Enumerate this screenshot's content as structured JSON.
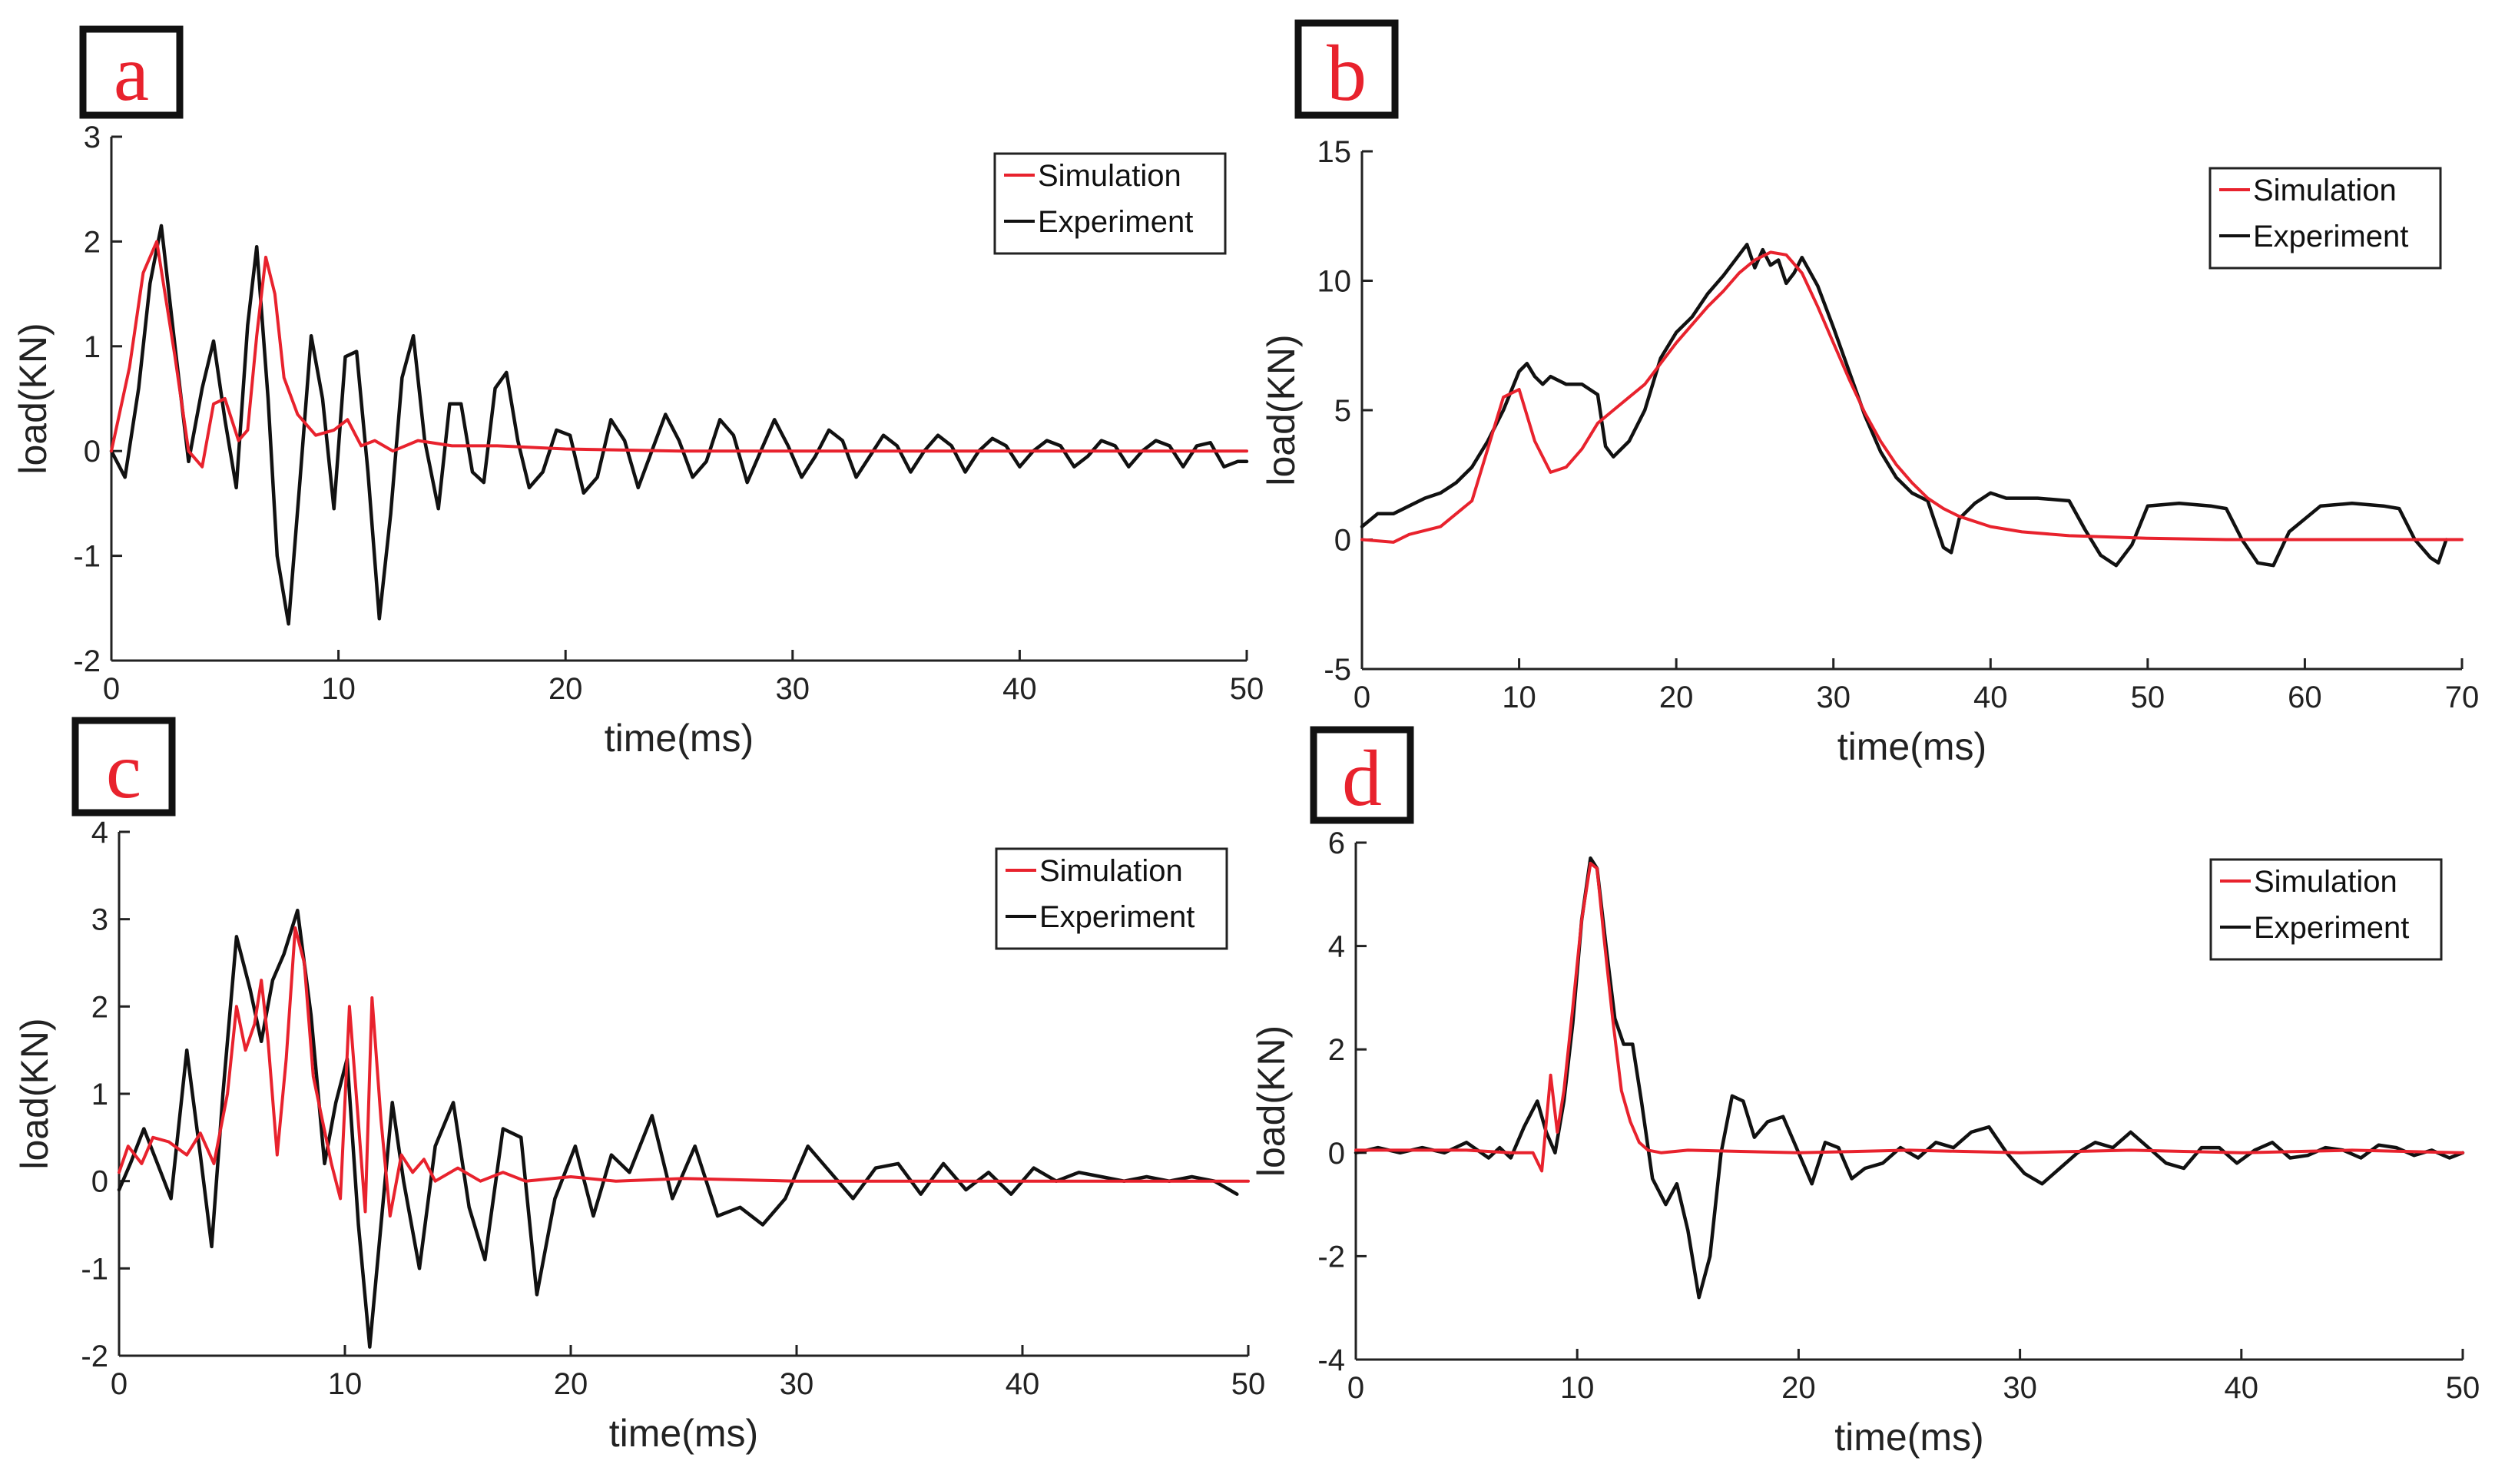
{
  "colors": {
    "simulation": "#e8222d",
    "experiment": "#111111",
    "panel_letter": "#e8222d",
    "axis": "#222222"
  },
  "chart_data": [
    {
      "id": "a",
      "type": "line",
      "panel_label": "a",
      "xlabel": "time(ms)",
      "ylabel": "load(KN)",
      "xlim": [
        0,
        50
      ],
      "ylim": [
        -2,
        3
      ],
      "xticks": [
        0,
        10,
        20,
        30,
        40,
        50
      ],
      "yticks": [
        -2,
        -1,
        0,
        1,
        2,
        3
      ],
      "legend_position": "top-right",
      "series": [
        {
          "name": "Simulation",
          "color": "#e8222d",
          "x": [
            0,
            0.8,
            1.4,
            2.0,
            2.8,
            3.4,
            4.0,
            4.5,
            5.0,
            5.6,
            6.0,
            6.4,
            6.8,
            7.2,
            7.6,
            8.2,
            9.0,
            9.8,
            10.4,
            11.0,
            11.6,
            12.4,
            13.5,
            15,
            17,
            20,
            25,
            30,
            35,
            40,
            45,
            50
          ],
          "y": [
            0,
            0.8,
            1.7,
            2.0,
            0.9,
            0.0,
            -0.15,
            0.45,
            0.5,
            0.1,
            0.2,
            1.1,
            1.85,
            1.5,
            0.7,
            0.35,
            0.15,
            0.2,
            0.3,
            0.05,
            0.1,
            0.0,
            0.1,
            0.05,
            0.05,
            0.02,
            0.0,
            0.0,
            0.0,
            0.0,
            0.0,
            0.0
          ]
        },
        {
          "name": "Experiment",
          "color": "#111111",
          "x": [
            0,
            0.6,
            1.2,
            1.7,
            2.2,
            2.8,
            3.4,
            4.0,
            4.5,
            5.0,
            5.5,
            6.0,
            6.4,
            6.9,
            7.3,
            7.8,
            8.3,
            8.8,
            9.3,
            9.8,
            10.3,
            10.8,
            11.3,
            11.8,
            12.3,
            12.8,
            13.3,
            13.8,
            14.4,
            14.9,
            15.4,
            15.9,
            16.4,
            16.9,
            17.4,
            17.9,
            18.4,
            19.0,
            19.6,
            20.2,
            20.8,
            21.4,
            22.0,
            22.6,
            23.2,
            23.8,
            24.4,
            25.0,
            25.6,
            26.2,
            26.8,
            27.4,
            28.0,
            28.6,
            29.2,
            29.8,
            30.4,
            31.0,
            31.6,
            32.2,
            32.8,
            33.4,
            34.0,
            34.6,
            35.2,
            35.8,
            36.4,
            37.0,
            37.6,
            38.2,
            38.8,
            39.4,
            40.0,
            40.6,
            41.2,
            41.8,
            42.4,
            43.0,
            43.6,
            44.2,
            44.8,
            45.4,
            46.0,
            46.6,
            47.2,
            47.8,
            48.4,
            49.0,
            49.6,
            50
          ],
          "y": [
            0,
            -0.25,
            0.6,
            1.6,
            2.15,
            1.0,
            -0.1,
            0.6,
            1.05,
            0.3,
            -0.35,
            1.2,
            1.95,
            0.5,
            -1.0,
            -1.65,
            -0.3,
            1.1,
            0.5,
            -0.55,
            0.9,
            0.95,
            -0.2,
            -1.6,
            -0.6,
            0.7,
            1.1,
            0.1,
            -0.55,
            0.45,
            0.45,
            -0.2,
            -0.3,
            0.6,
            0.75,
            0.1,
            -0.35,
            -0.2,
            0.2,
            0.15,
            -0.4,
            -0.25,
            0.3,
            0.1,
            -0.35,
            0.0,
            0.35,
            0.1,
            -0.25,
            -0.1,
            0.3,
            0.15,
            -0.3,
            0.0,
            0.3,
            0.05,
            -0.25,
            -0.05,
            0.2,
            0.1,
            -0.25,
            -0.05,
            0.15,
            0.05,
            -0.2,
            0.0,
            0.15,
            0.05,
            -0.2,
            0.0,
            0.12,
            0.05,
            -0.15,
            0.0,
            0.1,
            0.05,
            -0.15,
            -0.05,
            0.1,
            0.05,
            -0.15,
            0.0,
            0.1,
            0.05,
            -0.15,
            0.05,
            0.08,
            -0.15,
            -0.1,
            -0.1
          ]
        }
      ]
    },
    {
      "id": "b",
      "type": "line",
      "panel_label": "b",
      "xlabel": "time(ms)",
      "ylabel": "load(KN)",
      "xlim": [
        0,
        70
      ],
      "ylim": [
        -5,
        15
      ],
      "xticks": [
        0,
        10,
        20,
        30,
        40,
        50,
        60,
        70
      ],
      "yticks": [
        -5,
        0,
        5,
        10,
        15
      ],
      "legend_position": "top-right",
      "series": [
        {
          "name": "Simulation",
          "color": "#e8222d",
          "x": [
            0,
            2,
            3,
            5,
            7,
            8,
            9,
            10,
            11,
            12,
            13,
            14,
            15,
            16,
            17,
            18,
            19,
            20,
            21,
            22,
            23,
            24,
            25,
            26,
            27,
            28,
            29,
            30,
            31,
            32,
            33,
            34,
            35,
            36,
            37,
            38,
            40,
            42,
            45,
            50,
            55,
            60,
            65,
            70
          ],
          "y": [
            0.0,
            -0.1,
            0.2,
            0.5,
            1.5,
            3.5,
            5.5,
            5.8,
            3.8,
            2.6,
            2.8,
            3.5,
            4.5,
            5.0,
            5.5,
            6.0,
            6.8,
            7.6,
            8.3,
            9.0,
            9.6,
            10.3,
            10.8,
            11.1,
            11.0,
            10.3,
            9.0,
            7.6,
            6.2,
            4.9,
            3.8,
            2.9,
            2.2,
            1.6,
            1.2,
            0.9,
            0.5,
            0.3,
            0.15,
            0.05,
            0.0,
            0.0,
            0.0,
            0.0
          ]
        },
        {
          "name": "Experiment",
          "color": "#111111",
          "x": [
            0,
            1,
            2,
            3,
            4,
            5,
            6,
            7,
            8,
            9,
            10,
            10.5,
            11,
            11.5,
            12,
            13,
            14,
            15,
            15.5,
            16,
            17,
            18,
            19,
            20,
            21,
            22,
            23,
            24,
            24.5,
            25,
            25.5,
            26,
            26.5,
            27,
            27.5,
            28,
            29,
            30,
            31,
            32,
            33,
            34,
            35,
            36,
            37,
            37.5,
            38,
            39,
            40,
            41,
            43,
            45,
            46,
            47,
            48,
            49,
            50,
            52,
            54,
            55,
            56,
            57,
            58,
            59,
            61,
            63,
            65,
            66,
            67,
            68,
            68.5,
            69
          ],
          "y": [
            0.5,
            1.0,
            1.0,
            1.3,
            1.6,
            1.8,
            2.2,
            2.8,
            3.8,
            5.0,
            6.5,
            6.8,
            6.3,
            6.0,
            6.3,
            6.0,
            6.0,
            5.6,
            3.6,
            3.2,
            3.8,
            5.0,
            7.0,
            8.0,
            8.6,
            9.5,
            10.2,
            11.0,
            11.4,
            10.5,
            11.2,
            10.6,
            10.8,
            9.9,
            10.3,
            10.9,
            9.8,
            8.2,
            6.5,
            4.8,
            3.4,
            2.4,
            1.8,
            1.5,
            -0.3,
            -0.5,
            0.8,
            1.4,
            1.8,
            1.6,
            1.6,
            1.5,
            0.4,
            -0.6,
            -1.0,
            -0.2,
            1.3,
            1.4,
            1.3,
            1.2,
            0.0,
            -0.9,
            -1.0,
            0.3,
            1.3,
            1.4,
            1.3,
            1.2,
            0.0,
            -0.7,
            -0.9,
            0.0
          ]
        }
      ]
    },
    {
      "id": "c",
      "type": "line",
      "panel_label": "c",
      "xlabel": "time(ms)",
      "ylabel": "load(KN)",
      "xlim": [
        0,
        50
      ],
      "ylim": [
        -2,
        4
      ],
      "xticks": [
        0,
        10,
        20,
        30,
        40,
        50
      ],
      "yticks": [
        -2,
        -1,
        0,
        1,
        2,
        3,
        4
      ],
      "legend_position": "top-right",
      "series": [
        {
          "name": "Simulation",
          "color": "#e8222d",
          "x": [
            0,
            0.4,
            1.0,
            1.5,
            2.2,
            3.0,
            3.6,
            4.2,
            4.8,
            5.2,
            5.6,
            6.0,
            6.3,
            6.6,
            7.0,
            7.4,
            7.8,
            8.2,
            8.6,
            9.0,
            9.4,
            9.8,
            10.2,
            10.5,
            10.9,
            11.2,
            11.6,
            12.0,
            12.5,
            13.0,
            13.5,
            14.0,
            15,
            16,
            17,
            18,
            20,
            22,
            25,
            30,
            35,
            40,
            45,
            50
          ],
          "y": [
            0.1,
            0.4,
            0.2,
            0.5,
            0.45,
            0.3,
            0.55,
            0.2,
            1.0,
            2.0,
            1.5,
            1.8,
            2.3,
            1.6,
            0.3,
            1.4,
            2.9,
            2.5,
            1.2,
            0.7,
            0.2,
            -0.2,
            2.0,
            1.0,
            -0.35,
            2.1,
            0.7,
            -0.4,
            0.3,
            0.1,
            0.25,
            0.0,
            0.15,
            0.0,
            0.1,
            0.0,
            0.05,
            0.0,
            0.03,
            0.0,
            0.0,
            0.0,
            0.0,
            0.0
          ]
        },
        {
          "name": "Experiment",
          "color": "#111111",
          "x": [
            0,
            0.5,
            1.1,
            1.7,
            2.3,
            3.0,
            3.6,
            4.1,
            4.6,
            5.2,
            5.8,
            6.3,
            6.8,
            7.3,
            7.9,
            8.5,
            9.1,
            9.6,
            10.1,
            10.6,
            11.1,
            11.6,
            12.1,
            12.6,
            13.3,
            14.0,
            14.8,
            15.5,
            16.2,
            17.0,
            17.8,
            18.5,
            19.3,
            20.2,
            21.0,
            21.8,
            22.6,
            23.6,
            24.5,
            25.5,
            26.5,
            27.5,
            28.5,
            29.5,
            30.5,
            31.5,
            32.5,
            33.5,
            34.5,
            35.5,
            36.5,
            37.5,
            38.5,
            39.5,
            40.5,
            41.5,
            42.5,
            43.5,
            44.5,
            45.5,
            46.5,
            47.5,
            48.5,
            49.5
          ],
          "y": [
            -0.1,
            0.2,
            0.6,
            0.2,
            -0.2,
            1.5,
            0.3,
            -0.75,
            1.0,
            2.8,
            2.2,
            1.6,
            2.3,
            2.6,
            3.1,
            1.9,
            0.2,
            0.9,
            1.4,
            -0.5,
            -1.9,
            -0.5,
            0.9,
            0.0,
            -1.0,
            0.4,
            0.9,
            -0.3,
            -0.9,
            0.6,
            0.5,
            -1.3,
            -0.2,
            0.4,
            -0.4,
            0.3,
            0.1,
            0.75,
            -0.2,
            0.4,
            -0.4,
            -0.3,
            -0.5,
            -0.2,
            0.4,
            0.1,
            -0.2,
            0.15,
            0.2,
            -0.15,
            0.2,
            -0.1,
            0.1,
            -0.15,
            0.15,
            0.0,
            0.1,
            0.05,
            0.0,
            0.05,
            0.0,
            0.05,
            0.0,
            -0.15
          ]
        }
      ]
    },
    {
      "id": "d",
      "type": "line",
      "panel_label": "d",
      "xlabel": "time(ms)",
      "ylabel": "load(KN)",
      "xlim": [
        0,
        50
      ],
      "ylim": [
        -4,
        6
      ],
      "xticks": [
        0,
        10,
        20,
        30,
        40,
        50
      ],
      "yticks": [
        -4,
        -2,
        0,
        2,
        4,
        6
      ],
      "legend_position": "top-right",
      "series": [
        {
          "name": "Simulation",
          "color": "#e8222d",
          "x": [
            0,
            5,
            7,
            8.0,
            8.4,
            8.8,
            9.1,
            9.4,
            9.8,
            10.2,
            10.6,
            10.9,
            11.2,
            11.6,
            12.0,
            12.4,
            12.8,
            13.2,
            13.8,
            15,
            20,
            25,
            30,
            35,
            40,
            45,
            50
          ],
          "y": [
            0.05,
            0.05,
            0.0,
            0.0,
            -0.35,
            1.5,
            0.4,
            1.2,
            2.8,
            4.5,
            5.6,
            5.5,
            4.2,
            2.6,
            1.2,
            0.6,
            0.2,
            0.05,
            0.0,
            0.05,
            0.0,
            0.05,
            0.0,
            0.05,
            0.0,
            0.05,
            0.0
          ]
        },
        {
          "name": "Experiment",
          "color": "#111111",
          "x": [
            0,
            1,
            2,
            3,
            4,
            5,
            6,
            6.5,
            7,
            7.6,
            8.2,
            8.6,
            9.0,
            9.4,
            9.8,
            10.2,
            10.6,
            10.9,
            11.3,
            11.7,
            12.1,
            12.5,
            12.9,
            13.4,
            14.0,
            14.5,
            15.0,
            15.5,
            16.0,
            16.5,
            17.0,
            17.5,
            18.0,
            18.6,
            19.3,
            20.0,
            20.6,
            21.2,
            21.8,
            22.4,
            23.0,
            23.8,
            24.6,
            25.4,
            26.2,
            27.0,
            27.8,
            28.6,
            29.4,
            30.2,
            31.0,
            31.8,
            32.6,
            33.4,
            34.2,
            35.0,
            35.8,
            36.6,
            37.4,
            38.2,
            39.0,
            39.8,
            40.6,
            41.4,
            42.2,
            43.0,
            43.8,
            44.6,
            45.4,
            46.2,
            47.0,
            47.8,
            48.6,
            49.4,
            50
          ],
          "y": [
            0.0,
            0.1,
            0.0,
            0.1,
            0.0,
            0.2,
            -0.1,
            0.1,
            -0.1,
            0.5,
            1.0,
            0.4,
            0.0,
            1.0,
            2.5,
            4.5,
            5.7,
            5.5,
            4.0,
            2.6,
            2.1,
            2.1,
            1.0,
            -0.5,
            -1.0,
            -0.6,
            -1.5,
            -2.8,
            -2.0,
            0.0,
            1.1,
            1.0,
            0.3,
            0.6,
            0.7,
            0.0,
            -0.6,
            0.2,
            0.1,
            -0.5,
            -0.3,
            -0.2,
            0.1,
            -0.1,
            0.2,
            0.1,
            0.4,
            0.5,
            0.0,
            -0.4,
            -0.6,
            -0.3,
            0.0,
            0.2,
            0.1,
            0.4,
            0.1,
            -0.2,
            -0.3,
            0.1,
            0.1,
            -0.2,
            0.05,
            0.2,
            -0.1,
            -0.05,
            0.1,
            0.05,
            -0.1,
            0.15,
            0.1,
            -0.05,
            0.05,
            -0.1,
            0.0
          ]
        }
      ]
    }
  ]
}
